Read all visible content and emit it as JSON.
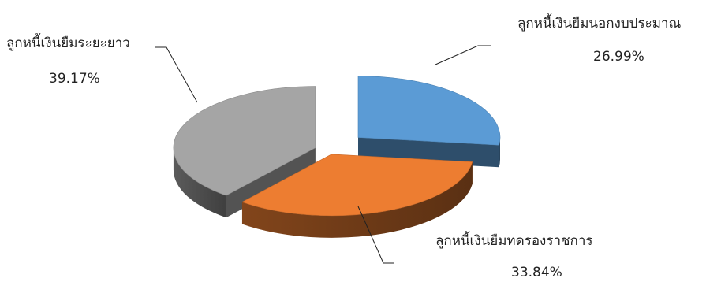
{
  "chart_data": {
    "type": "pie",
    "style": "3d-exploded",
    "slices": [
      {
        "label": "ลูกหนี้เงินยืมนอกงบประมาณ",
        "value": 26.99,
        "value_label": "26.99%",
        "color": "#5b9bd5"
      },
      {
        "label": "ลูกหนี้เงินยืมทดรองราชการ",
        "value": 33.84,
        "value_label": "33.84%",
        "color": "#ed7d31"
      },
      {
        "label": "ลูกหนี้เงินยืมระยะยาว",
        "value": 39.17,
        "value_label": "39.17%",
        "color": "#a5a5a5"
      }
    ]
  }
}
